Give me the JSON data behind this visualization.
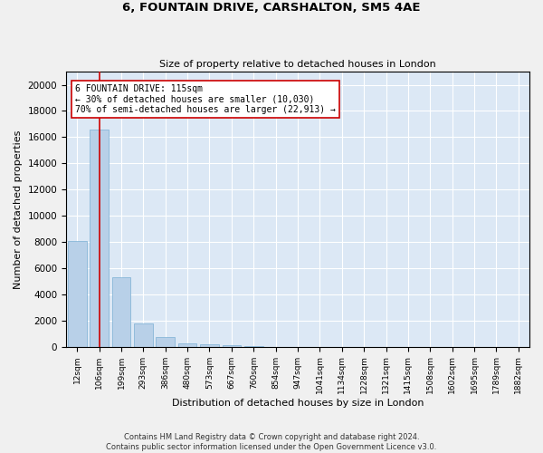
{
  "title": "6, FOUNTAIN DRIVE, CARSHALTON, SM5 4AE",
  "subtitle": "Size of property relative to detached houses in London",
  "xlabel": "Distribution of detached houses by size in London",
  "ylabel": "Number of detached properties",
  "bar_color": "#b8d0e8",
  "bar_edge_color": "#7aafd4",
  "background_color": "#dce8f5",
  "grid_color": "#ffffff",
  "annotation_line_color": "#cc0000",
  "annotation_box_color": "#cc0000",
  "annotation_line1": "6 FOUNTAIN DRIVE: 115sqm",
  "annotation_line2": "← 30% of detached houses are smaller (10,030)",
  "annotation_line3": "70% of semi-detached houses are larger (22,913) →",
  "footer": "Contains HM Land Registry data © Crown copyright and database right 2024.\nContains public sector information licensed under the Open Government Licence v3.0.",
  "categories": [
    "12sqm",
    "106sqm",
    "199sqm",
    "293sqm",
    "386sqm",
    "480sqm",
    "573sqm",
    "667sqm",
    "760sqm",
    "854sqm",
    "947sqm",
    "1041sqm",
    "1134sqm",
    "1228sqm",
    "1321sqm",
    "1415sqm",
    "1508sqm",
    "1602sqm",
    "1695sqm",
    "1789sqm",
    "1882sqm"
  ],
  "values": [
    8100,
    16600,
    5300,
    1800,
    700,
    280,
    170,
    100,
    60,
    0,
    0,
    0,
    0,
    0,
    0,
    0,
    0,
    0,
    0,
    0,
    0
  ],
  "ylim": [
    0,
    21000
  ],
  "yticks": [
    0,
    2000,
    4000,
    6000,
    8000,
    10000,
    12000,
    14000,
    16000,
    18000,
    20000
  ],
  "figsize": [
    6.0,
    5.0
  ],
  "dpi": 100
}
